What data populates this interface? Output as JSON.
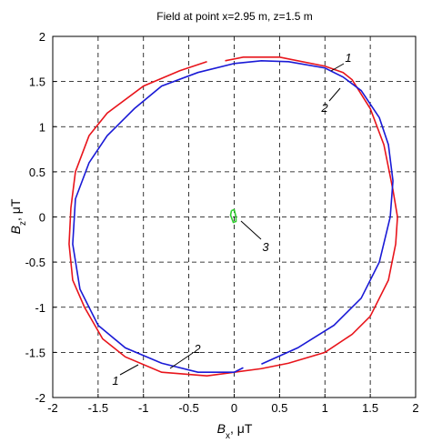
{
  "chart_data": {
    "type": "line",
    "title": "Field at point x=2.95 m, z=1.5 m",
    "xlabel": [
      "B",
      "x",
      ", μT"
    ],
    "ylabel": [
      "B",
      "z",
      ", μT"
    ],
    "xlim": [
      -2,
      2
    ],
    "ylim": [
      -2,
      2
    ],
    "xticks": [
      -2,
      -1.5,
      -1,
      -0.5,
      0,
      0.5,
      1,
      1.5,
      2
    ],
    "yticks": [
      -2,
      -1.5,
      -1,
      -0.5,
      0,
      0.5,
      1,
      1.5,
      2
    ],
    "grid": true,
    "series": [
      {
        "name": "1",
        "color": "#e8141b",
        "x": [
          -0.1,
          0.1,
          0.5,
          1.0,
          1.2,
          1.3,
          1.5,
          1.65,
          1.75,
          1.8,
          1.78,
          1.7,
          1.5,
          1.3,
          1.0,
          0.6,
          0.3,
          0,
          -0.3,
          -0.8,
          -1.2,
          -1.45,
          -1.65,
          -1.78,
          -1.82,
          -1.8,
          -1.75,
          -1.6,
          -1.4,
          -1.0,
          -0.6,
          -0.3
        ],
        "values": [
          1.73,
          1.77,
          1.77,
          1.67,
          1.6,
          1.52,
          1.2,
          0.8,
          0.3,
          0,
          -0.3,
          -0.7,
          -1.1,
          -1.3,
          -1.5,
          -1.62,
          -1.68,
          -1.72,
          -1.76,
          -1.72,
          -1.55,
          -1.35,
          -1.0,
          -0.7,
          -0.3,
          0.1,
          0.5,
          0.9,
          1.15,
          1.45,
          1.62,
          1.72
        ]
      },
      {
        "name": "2",
        "color": "#1a1ad6",
        "x": [
          0.3,
          0.7,
          1.1,
          1.4,
          1.6,
          1.72,
          1.75,
          1.7,
          1.6,
          1.4,
          1.2,
          1.0,
          0.6,
          0.3,
          0,
          -0.4,
          -0.8,
          -1.1,
          -1.4,
          -1.6,
          -1.75,
          -1.78,
          -1.7,
          -1.5,
          -1.2,
          -0.8,
          -0.4,
          0,
          0.1
        ],
        "values": [
          -1.63,
          -1.45,
          -1.2,
          -0.9,
          -0.5,
          0,
          0.4,
          0.8,
          1.1,
          1.4,
          1.55,
          1.65,
          1.72,
          1.73,
          1.7,
          1.6,
          1.45,
          1.2,
          0.9,
          0.6,
          0.2,
          -0.3,
          -0.8,
          -1.2,
          -1.45,
          -1.62,
          -1.72,
          -1.72,
          -1.67
        ]
      },
      {
        "name": "3",
        "color": "#2ecc2e",
        "x": [
          -0.03,
          0.0,
          0.02,
          0.02,
          -0.01,
          -0.04,
          -0.03
        ],
        "values": [
          0.07,
          0.08,
          0.0,
          -0.05,
          -0.06,
          0.02,
          0.07
        ]
      }
    ]
  }
}
